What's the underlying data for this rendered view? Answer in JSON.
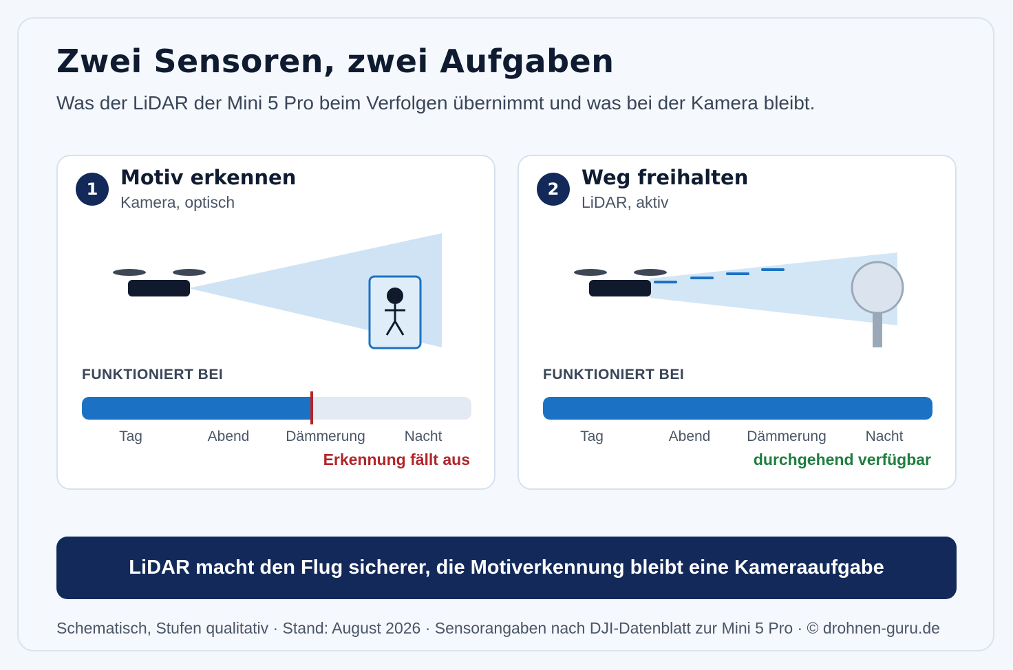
{
  "header": {
    "title": "Zwei Sensoren, zwei Aufgaben",
    "subtitle": "Was der LiDAR der Mini 5 Pro beim Verfolgen übernimmt und was bei der Kamera bleibt."
  },
  "panels": [
    {
      "number": "1",
      "title": "Motiv erkennen",
      "subtitle": "Kamera, optisch",
      "works_label": "FUNKTIONIERT BEI",
      "levels": [
        "Tag",
        "Abend",
        "Dämmerung",
        "Nacht"
      ],
      "availability": 0.59,
      "status": "Erkennung fällt aus",
      "icons": [
        "drone-icon",
        "camera-cone-icon",
        "person-icon"
      ],
      "colors": {
        "bar": "#1b72c4",
        "status": "#b1252b"
      }
    },
    {
      "number": "2",
      "title": "Weg freihalten",
      "subtitle": "LiDAR, aktiv",
      "works_label": "FUNKTIONIERT BEI",
      "levels": [
        "Tag",
        "Abend",
        "Dämmerung",
        "Nacht"
      ],
      "availability": 1.0,
      "status": "durchgehend verfügbar",
      "icons": [
        "drone-icon",
        "lidar-beam-icon",
        "obstacle-tree-icon"
      ],
      "colors": {
        "bar": "#1b72c4",
        "status": "#1e7e3e"
      }
    }
  ],
  "banner": "LiDAR macht den Flug sicherer, die Motiverkennung bleibt eine Kameraaufgabe",
  "footer": "Schematisch, Stufen qualitativ · Stand: August 2026 · Sensorangaben nach DJI-Datenblatt zur Mini 5 Pro · © drohnen-guru.de",
  "colors": {
    "accent": "#13295a",
    "bar": "#1b72c4",
    "background": "#f4f7fb"
  }
}
